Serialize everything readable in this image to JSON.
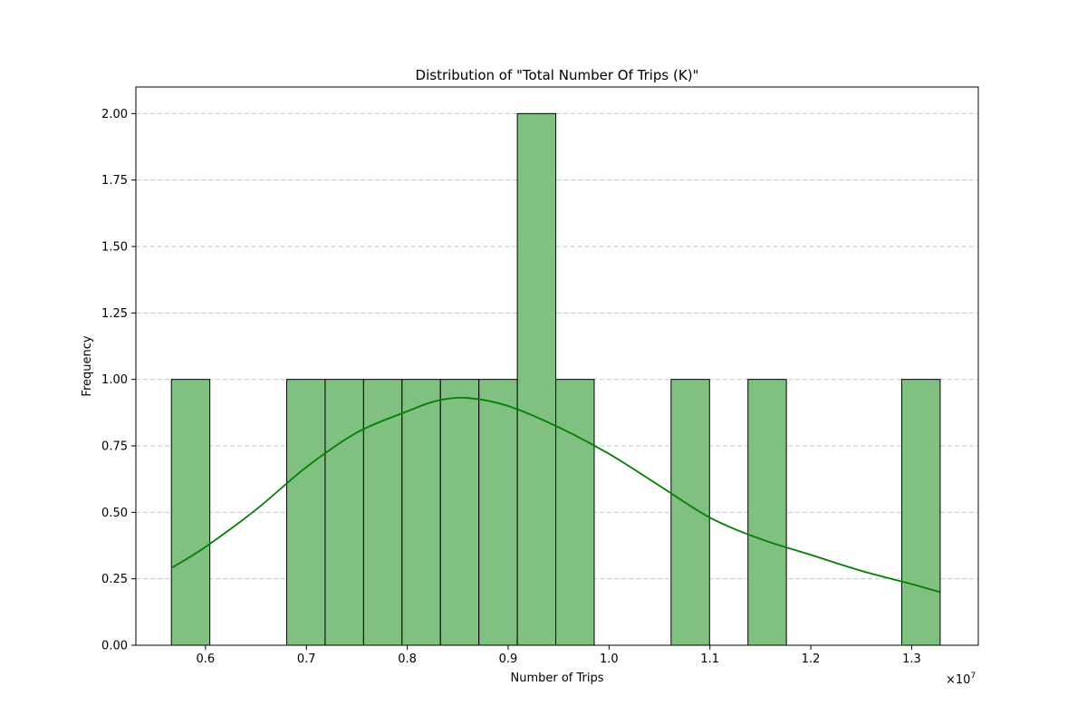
{
  "chart_data": {
    "type": "bar",
    "title": "Distribution of \"Total Number Of Trips (K)\"",
    "xlabel": "Number of Trips",
    "ylabel": "Frequency",
    "x_offset_label": "×10",
    "x_offset_exponent": "7",
    "xlim": [
      0.531,
      1.366
    ],
    "ylim": [
      0,
      2.1
    ],
    "x_ticks": [
      0.6,
      0.7,
      0.8,
      0.9,
      1.0,
      1.1,
      1.2,
      1.3
    ],
    "x_tick_labels": [
      "0.6",
      "0.7",
      "0.8",
      "0.9",
      "1.0",
      "1.1",
      "1.2",
      "1.3"
    ],
    "y_ticks": [
      0,
      0.25,
      0.5,
      0.75,
      1.0,
      1.25,
      1.5,
      1.75,
      2.0
    ],
    "y_tick_labels": [
      "0.00",
      "0.25",
      "0.50",
      "0.75",
      "1.00",
      "1.25",
      "1.50",
      "1.75",
      "2.00"
    ],
    "bin_edges": [
      0.5662,
      0.6043,
      0.6424,
      0.6805,
      0.7186,
      0.7567,
      0.7948,
      0.8329,
      0.871,
      0.9091,
      0.9472,
      0.9853,
      1.0234,
      1.0615,
      1.0996,
      1.1377,
      1.1758,
      1.2139,
      1.252,
      1.2901,
      1.3282
    ],
    "counts": [
      1,
      0,
      0,
      1,
      1,
      1,
      1,
      1,
      1,
      2,
      1,
      0,
      0,
      1,
      0,
      1,
      0,
      0,
      0,
      1
    ],
    "kde": {
      "x": [
        0.566,
        0.6,
        0.65,
        0.7,
        0.75,
        0.8,
        0.83,
        0.86,
        0.9,
        0.95,
        1.0,
        1.05,
        1.1,
        1.15,
        1.2,
        1.25,
        1.3,
        1.328
      ],
      "y": [
        0.29,
        0.37,
        0.51,
        0.67,
        0.8,
        0.88,
        0.92,
        0.93,
        0.9,
        0.82,
        0.72,
        0.6,
        0.48,
        0.4,
        0.34,
        0.28,
        0.23,
        0.2
      ]
    },
    "grid": "y-dashed",
    "colors": {
      "bar_fill": "#80c080",
      "bar_edge": "#000000",
      "kde_line": "#008000",
      "grid": "#c8c8c8"
    }
  }
}
